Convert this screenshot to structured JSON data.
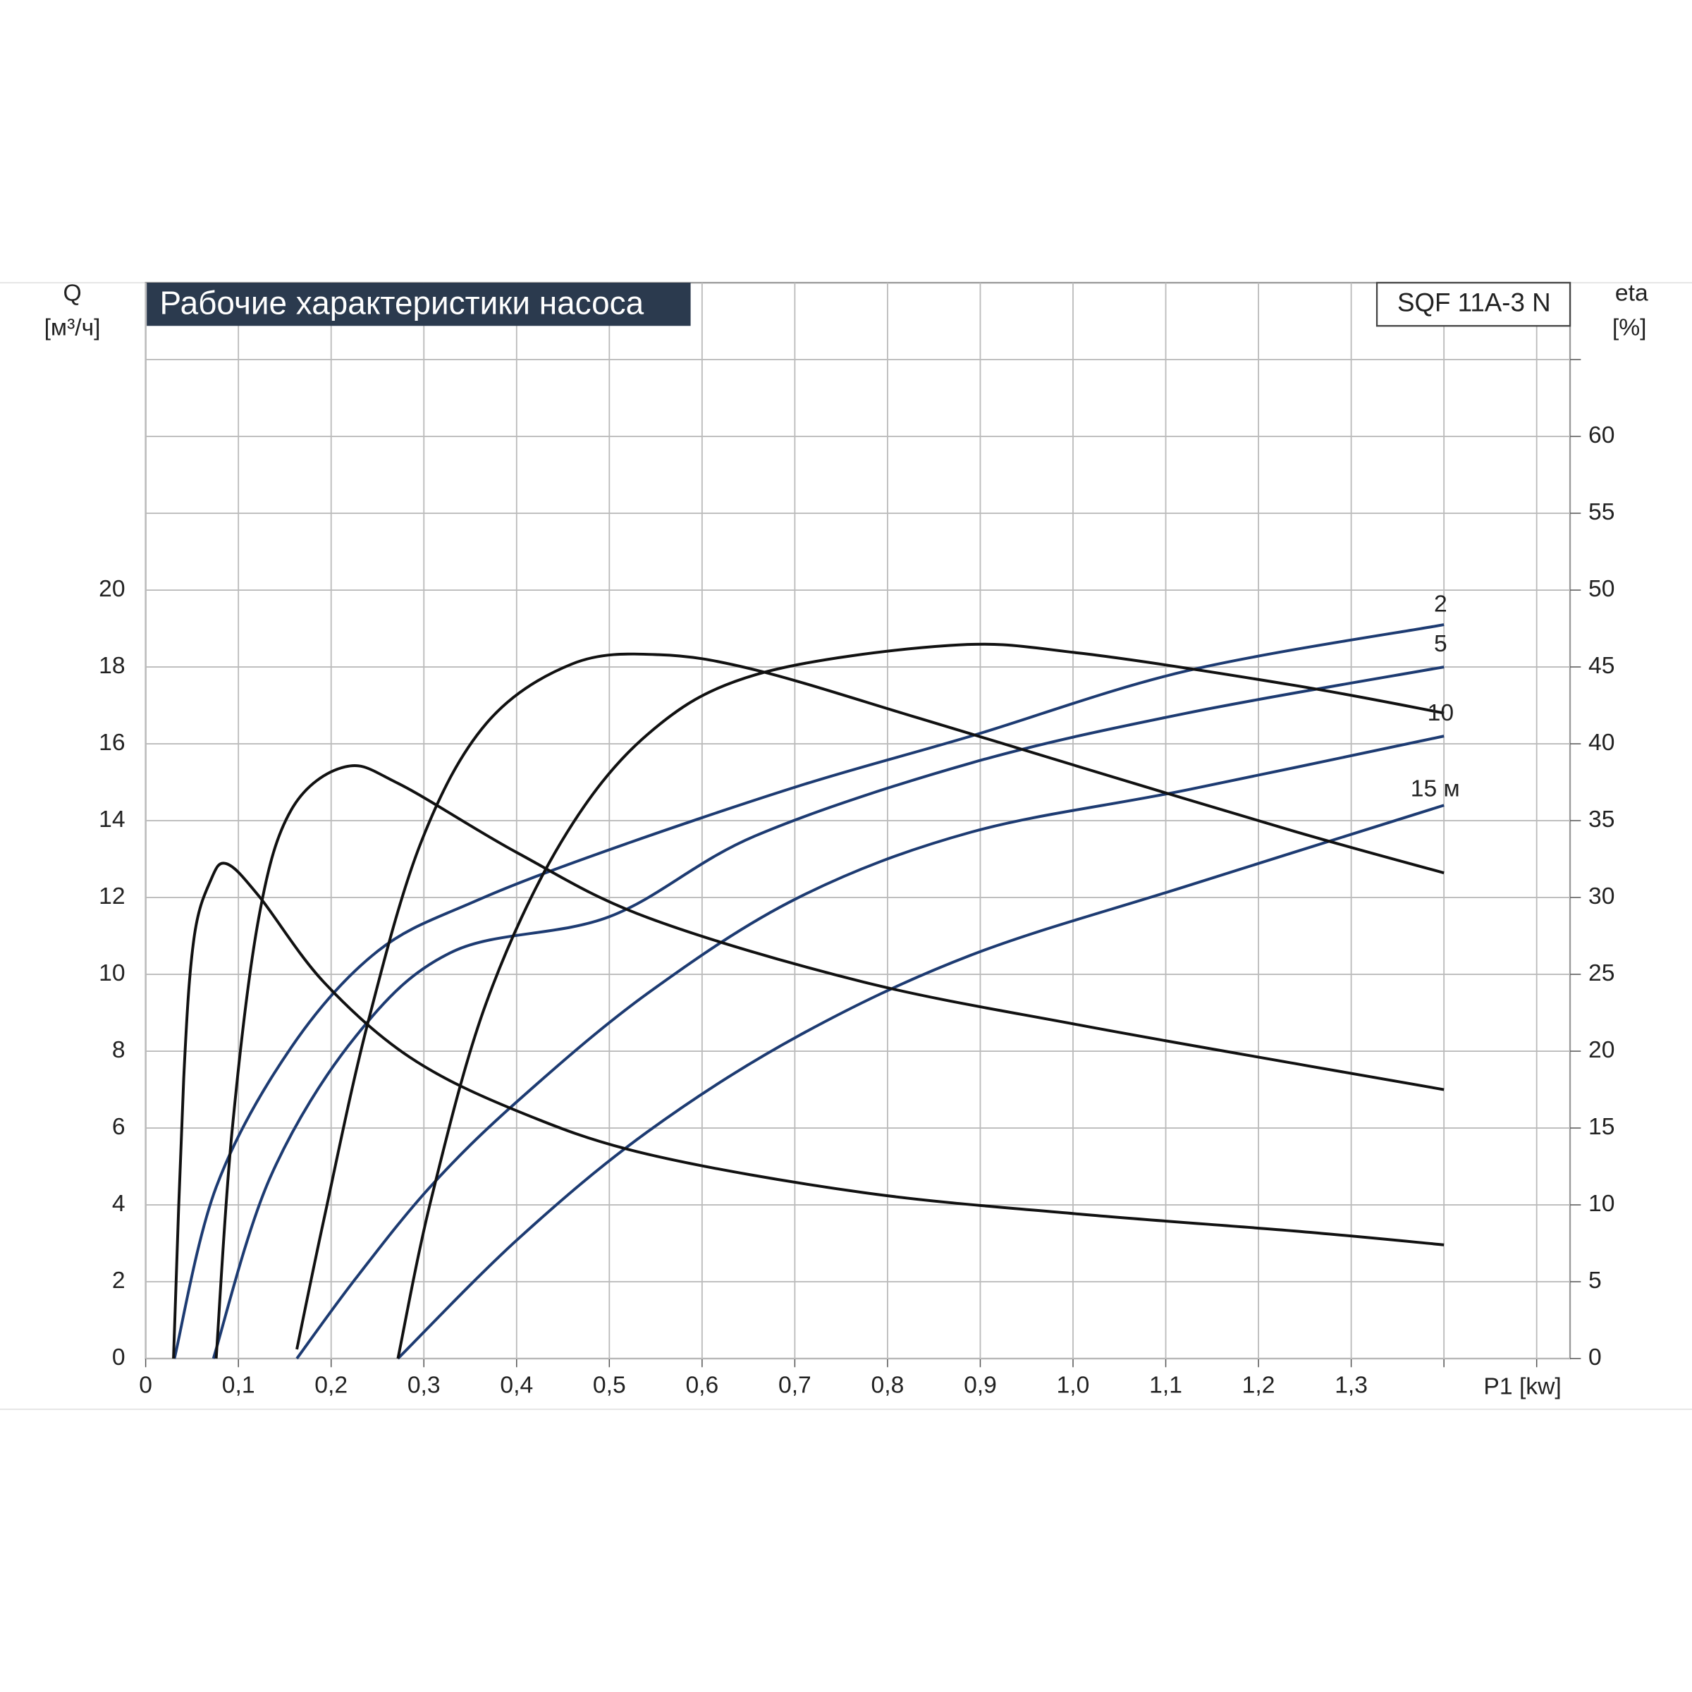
{
  "chart_data": {
    "type": "line",
    "title": "Рабочие характеристики насоса",
    "model": "SQF 11A-3 N",
    "y_label": "Q",
    "y_unit": "[м³/ч]",
    "y2_label": "eta",
    "y2_unit": "[%]",
    "x_label": "P1 [kw]",
    "curve_labels": [
      "2",
      "5",
      "10",
      "15 м"
    ],
    "xlim": [
      0,
      1.536
    ],
    "xticks": [
      0,
      {
        "value": 0.1,
        "label": "0,1"
      },
      {
        "value": 0.2,
        "label": "0,2"
      },
      {
        "value": 0.3,
        "label": "0,3"
      },
      {
        "value": 0.4,
        "label": "0,4"
      },
      {
        "value": 0.5,
        "label": "0,5"
      },
      {
        "value": 0.6,
        "label": "0,6"
      },
      {
        "value": 0.7,
        "label": "0,7"
      },
      {
        "value": 0.8,
        "label": "0,8"
      },
      {
        "value": 0.9,
        "label": "0,9"
      },
      {
        "value": 1.0,
        "label": "1,0"
      },
      {
        "value": 1.1,
        "label": "1,1"
      },
      {
        "value": 1.2,
        "label": "1,2"
      },
      {
        "value": 1.3,
        "label": "1,3"
      },
      {
        "value": 1.4,
        "label": null
      },
      {
        "value": 1.5,
        "label": null
      }
    ],
    "ylim": [
      0,
      28
    ],
    "yticks": [
      0,
      2,
      4,
      6,
      8,
      10,
      12,
      14,
      16,
      18,
      20,
      {
        "value": 22,
        "label": null
      },
      {
        "value": 24,
        "label": null
      },
      {
        "value": 26,
        "label": null
      }
    ],
    "y2lim": [
      0,
      70
    ],
    "y2ticks": [
      0,
      5,
      10,
      15,
      20,
      25,
      30,
      35,
      40,
      45,
      50,
      55,
      60,
      {
        "value": 65,
        "label": null
      }
    ],
    "grid": true,
    "series": [
      {
        "color": "#1d3b72",
        "x": [
          0.031,
          0.076,
          0.157,
          0.25,
          0.355,
          0.495,
          0.704,
          0.89,
          1.123,
          1.4
        ],
        "values": [
          0,
          4.46,
          8.1,
          10.6,
          11.9,
          13.2,
          14.9,
          16.2,
          17.9,
          19.1
        ]
      },
      {
        "color": "#1d3b72",
        "x": [
          0.073,
          0.134,
          0.227,
          0.332,
          0.5,
          0.657,
          0.89,
          1.123,
          1.4
        ],
        "values": [
          0,
          4.7,
          8.4,
          10.6,
          11.5,
          13.6,
          15.5,
          16.8,
          18.0
        ]
      },
      {
        "color": "#1d3b72",
        "x": [
          0.163,
          0.227,
          0.308,
          0.401,
          0.541,
          0.704,
          0.89,
          1.123,
          1.4
        ],
        "values": [
          0,
          2.1,
          4.5,
          6.7,
          9.5,
          12.0,
          13.7,
          14.8,
          16.2
        ]
      },
      {
        "color": "#1d3b72",
        "x": [
          0.272,
          0.401,
          0.541,
          0.704,
          0.89,
          1.123,
          1.4
        ],
        "values": [
          0,
          3.1,
          5.9,
          8.4,
          10.5,
          12.3,
          14.4
        ]
      },
      {
        "color": "#111111",
        "axis": "y2",
        "x": [
          0.03,
          0.041,
          0.052,
          0.07,
          0.087,
          0.122,
          0.192,
          0.285,
          0.401,
          0.541,
          0.774,
          1.007,
          1.239,
          1.4
        ],
        "values": [
          0,
          18.2,
          27.3,
          31.1,
          32.2,
          30.1,
          24.5,
          19.6,
          16.1,
          13.3,
          10.8,
          9.4,
          8.3,
          7.4
        ]
      },
      {
        "color": "#111111",
        "axis": "y2",
        "x": [
          0.076,
          0.093,
          0.122,
          0.157,
          0.215,
          0.273,
          0.401,
          0.541,
          0.774,
          1.007,
          1.239,
          1.4
        ],
        "values": [
          0,
          14.7,
          28.7,
          35.7,
          38.5,
          37.4,
          32.9,
          28.7,
          24.5,
          21.7,
          19.2,
          17.5
        ]
      },
      {
        "color": "#111111",
        "axis": "y2",
        "x": [
          0.163,
          0.192,
          0.239,
          0.297,
          0.367,
          0.46,
          0.553,
          0.658,
          0.832,
          1.007,
          1.239,
          1.4
        ],
        "values": [
          0.6,
          9.0,
          21.7,
          33.6,
          41.3,
          45.2,
          45.8,
          44.8,
          41.7,
          38.5,
          34.3,
          31.6
        ]
      },
      {
        "color": "#111111",
        "axis": "y2",
        "x": [
          0.272,
          0.308,
          0.367,
          0.448,
          0.541,
          0.658,
          0.867,
          1.007,
          1.239,
          1.4
        ],
        "values": [
          0,
          10.4,
          23.1,
          33.6,
          40.6,
          44.5,
          46.4,
          45.9,
          43.8,
          42.0
        ]
      }
    ]
  }
}
